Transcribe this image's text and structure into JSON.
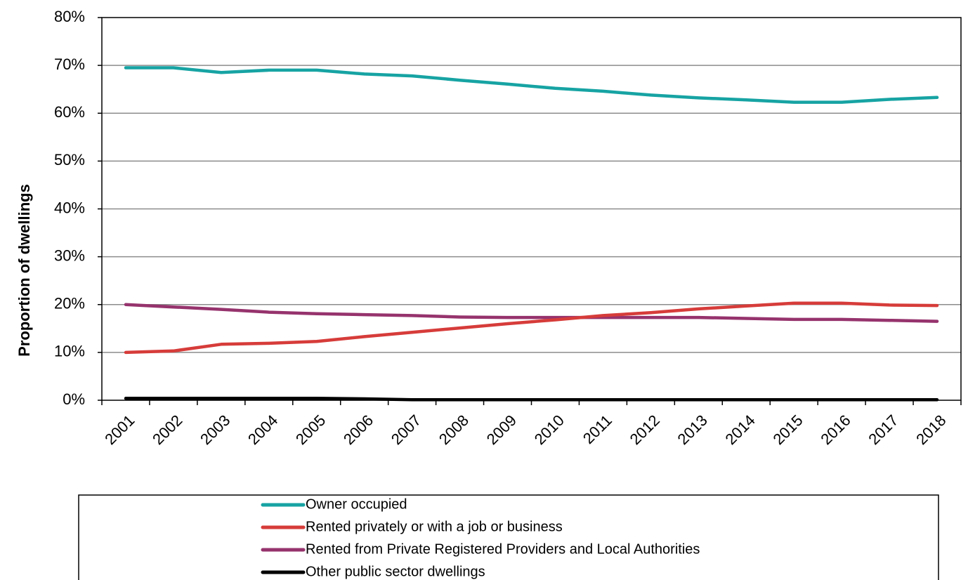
{
  "chart_data": {
    "type": "line",
    "ylabel": "Proportion of dwellings",
    "xlabel": "",
    "ylim": [
      0,
      80
    ],
    "y_ticks": [
      "0%",
      "10%",
      "20%",
      "30%",
      "40%",
      "50%",
      "60%",
      "70%",
      "80%"
    ],
    "categories": [
      "2001",
      "2002",
      "2003",
      "2004",
      "2005",
      "2006",
      "2007",
      "2008",
      "2009",
      "2010",
      "2011",
      "2012",
      "2013",
      "2014",
      "2015",
      "2016",
      "2017",
      "2018"
    ],
    "grid": true,
    "legend_position": "bottom",
    "series": [
      {
        "name": "Owner occupied",
        "color": "#17a3a3",
        "values": [
          69.5,
          69.5,
          68.5,
          69.0,
          69.0,
          68.2,
          67.8,
          66.9,
          66.1,
          65.2,
          64.6,
          63.8,
          63.2,
          62.8,
          62.3,
          62.3,
          62.9,
          63.3
        ]
      },
      {
        "name": "Rented privately or with a job or business",
        "color": "#d63c3a",
        "values": [
          10.0,
          10.3,
          11.7,
          11.9,
          12.3,
          13.3,
          14.2,
          15.1,
          16.0,
          16.8,
          17.7,
          18.3,
          19.1,
          19.7,
          20.3,
          20.3,
          19.9,
          19.8
        ]
      },
      {
        "name": "Rented from Private Registered Providers and Local Authorities",
        "color": "#96336d",
        "values": [
          20.0,
          19.5,
          19.0,
          18.4,
          18.1,
          17.9,
          17.7,
          17.4,
          17.3,
          17.3,
          17.3,
          17.3,
          17.3,
          17.1,
          16.9,
          16.9,
          16.7,
          16.5
        ]
      },
      {
        "name": "Other public sector dwellings",
        "color": "#000000",
        "values": [
          0.4,
          0.4,
          0.4,
          0.4,
          0.4,
          0.3,
          0.1,
          0.1,
          0.1,
          0.1,
          0.1,
          0.1,
          0.1,
          0.1,
          0.1,
          0.1,
          0.1,
          0.1
        ]
      }
    ]
  }
}
